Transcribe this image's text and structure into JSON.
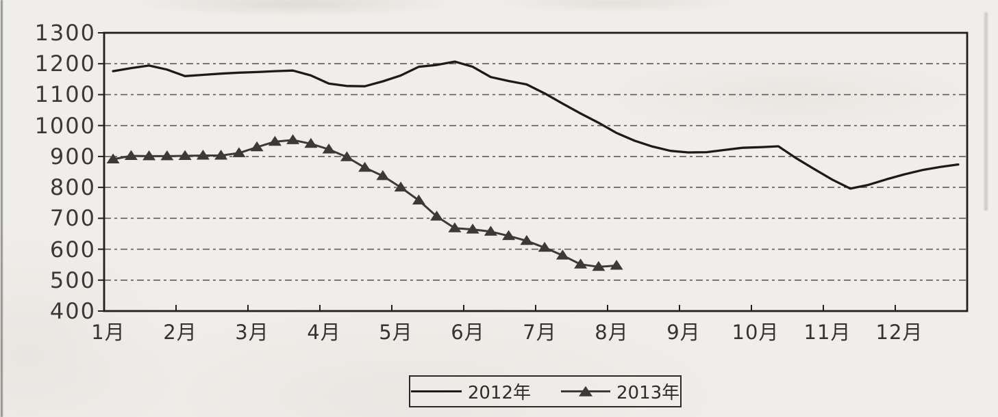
{
  "chart_data": {
    "type": "line",
    "title": "",
    "xlabel": "",
    "ylabel": "",
    "x_categories": [
      "1月",
      "2月",
      "3月",
      "4月",
      "5月",
      "6月",
      "7月",
      "8月",
      "9月",
      "10月",
      "11月",
      "12月"
    ],
    "points_per_month": 4,
    "ylim": [
      400,
      1300
    ],
    "y_ticks": [
      1300,
      1200,
      1100,
      1000,
      900,
      800,
      700,
      600,
      500,
      400
    ],
    "grid": "horizontal-dashed",
    "legend_position": "bottom-center",
    "series": [
      {
        "name": "2012年",
        "marker": "none",
        "color": "#1c1b1a",
        "values": [
          1176,
          1186,
          1194,
          1181,
          1160,
          1164,
          1168,
          1171,
          1173,
          1176,
          1178,
          1162,
          1136,
          1128,
          1127,
          1143,
          1162,
          1190,
          1196,
          1207,
          1190,
          1157,
          1144,
          1133,
          1104,
          1071,
          1039,
          1009,
          976,
          951,
          932,
          918,
          913,
          914,
          921,
          928,
          930,
          933,
          894,
          859,
          825,
          796,
          808,
          826,
          842,
          856,
          866,
          874
        ]
      },
      {
        "name": "2013年",
        "marker": "triangle",
        "color": "#3c3937",
        "values": [
          891,
          902,
          901,
          901,
          902,
          903,
          903,
          911,
          930,
          948,
          953,
          941,
          923,
          898,
          864,
          837,
          800,
          758,
          706,
          668,
          664,
          657,
          643,
          627,
          605,
          580,
          551,
          543,
          547
        ]
      }
    ]
  },
  "legend": {
    "items": [
      {
        "label": "2012年",
        "sample": "line"
      },
      {
        "label": "2013年",
        "sample": "line-with-triangle"
      }
    ]
  },
  "colors": {
    "paper": "#f0eeea",
    "ink": "#2c2a28",
    "grid": "#3a3734",
    "frame": "#201f1d"
  }
}
